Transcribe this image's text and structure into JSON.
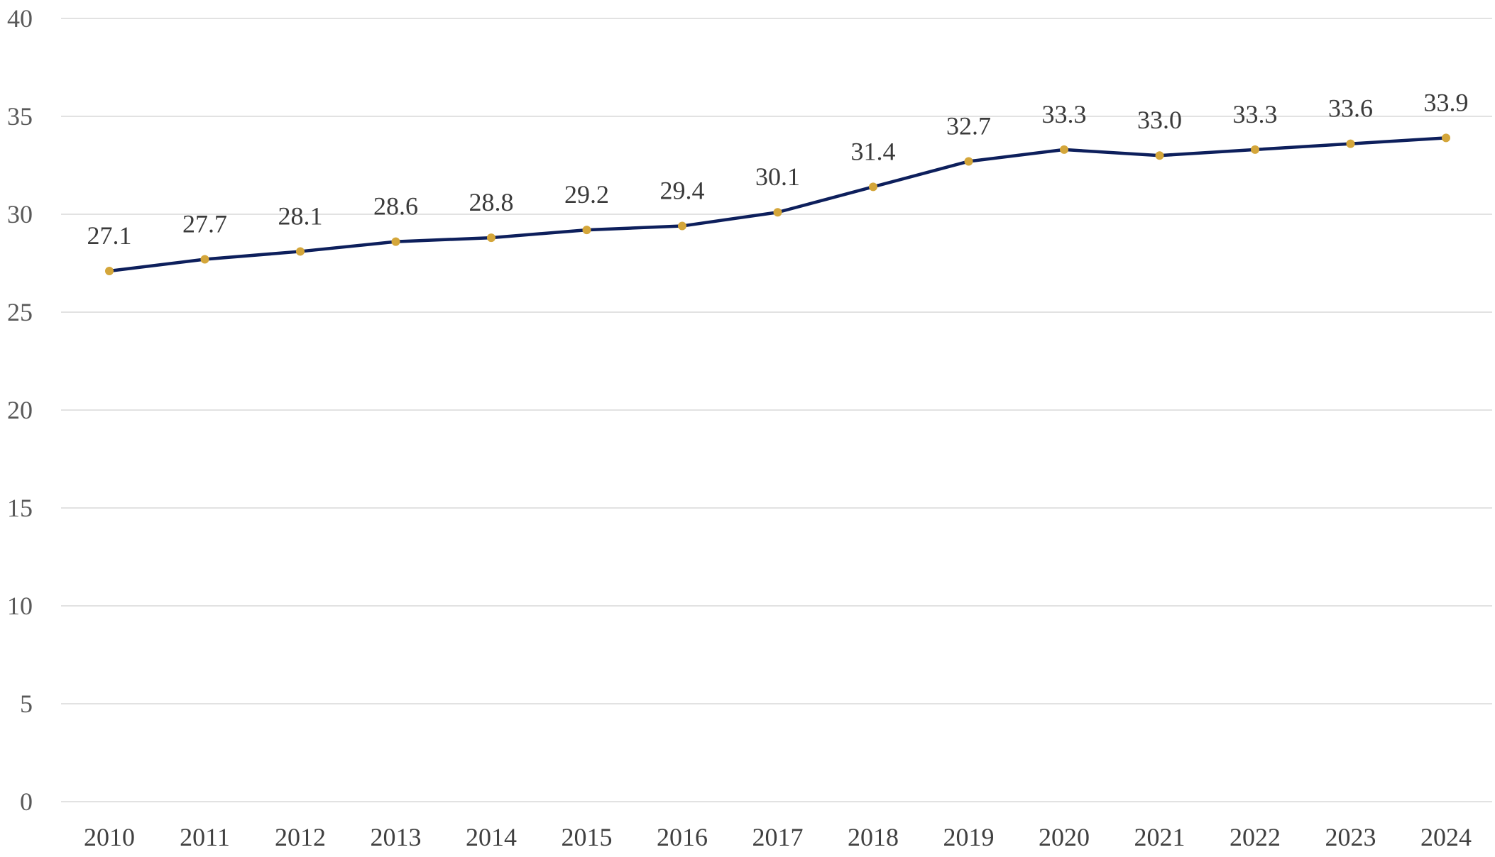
{
  "chart_data": {
    "type": "line",
    "title": "",
    "xlabel": "",
    "ylabel": "",
    "categories": [
      "2010",
      "2011",
      "2012",
      "2013",
      "2014",
      "2015",
      "2016",
      "2017",
      "2018",
      "2019",
      "2020",
      "2021",
      "2022",
      "2023",
      "2024"
    ],
    "series": [
      {
        "values": [
          27.1,
          27.7,
          28.1,
          28.6,
          28.8,
          29.2,
          29.4,
          30.1,
          31.4,
          32.7,
          33.3,
          33.0,
          33.3,
          33.6,
          33.9
        ],
        "labels": [
          "27.1",
          "27.7",
          "28.1",
          "28.6",
          "28.8",
          "29.2",
          "29.4",
          "30.1",
          "31.4",
          "32.7",
          "33.3",
          "33.0",
          "33.3",
          "33.6",
          "33.9"
        ]
      }
    ],
    "ylim": [
      0,
      40
    ],
    "yticks": [
      "0",
      "5",
      "10",
      "15",
      "20",
      "25",
      "30",
      "35",
      "40"
    ],
    "grid": true,
    "legend": "none",
    "colors": {
      "line": "#0d1f5c",
      "marker": "#d4a63a",
      "grid": "#d9d9d9"
    }
  }
}
